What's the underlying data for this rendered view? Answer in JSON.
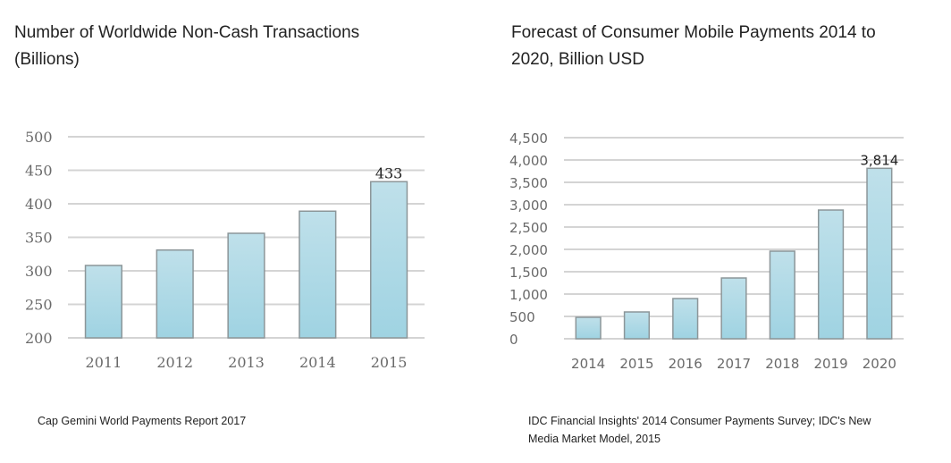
{
  "chart_data": [
    {
      "type": "bar",
      "title": "Number of Worldwide Non-Cash Transactions (Billions)",
      "title_lines": [
        "Number of Worldwide Non-Cash Transactions",
        "(Billions)"
      ],
      "xlabel": "",
      "ylabel": "",
      "categories": [
        "2011",
        "2012",
        "2013",
        "2014",
        "2015"
      ],
      "values": [
        308,
        331,
        356,
        389,
        433
      ],
      "data_labels": [
        {
          "category": "2015",
          "text": "433"
        }
      ],
      "ylim": [
        200,
        500
      ],
      "yticks": [
        200,
        250,
        300,
        350,
        400,
        450,
        500
      ],
      "ytick_labels": [
        "200",
        "250",
        "300",
        "350",
        "400",
        "450",
        "500"
      ],
      "grid": true,
      "legend": "none",
      "source": "Cap Gemini World Payments Report 2017"
    },
    {
      "type": "bar",
      "title": "Forecast of Consumer Mobile Payments 2014 to 2020, Billion USD",
      "title_lines": [
        "Forecast of Consumer Mobile Payments 2014 to",
        "2020, Billion USD"
      ],
      "xlabel": "",
      "ylabel": "",
      "categories": [
        "2014",
        "2015",
        "2016",
        "2017",
        "2018",
        "2019",
        "2020"
      ],
      "values": [
        480,
        600,
        900,
        1360,
        1960,
        2880,
        3814
      ],
      "data_labels": [
        {
          "category": "2020",
          "text": "3,814"
        }
      ],
      "ylim": [
        0,
        4500
      ],
      "yticks": [
        0,
        500,
        1000,
        1500,
        2000,
        2500,
        3000,
        3500,
        4000,
        4500
      ],
      "ytick_labels": [
        "0",
        "500",
        "1,000",
        "1,500",
        "2,000",
        "2,500",
        "3,000",
        "3,500",
        "4,000",
        "4,500"
      ],
      "grid": true,
      "legend": "none",
      "source_lines": [
        "IDC Financial Insights' 2014 Consumer Payments Survey; IDC's New",
        "Media Market Model, 2015"
      ]
    }
  ],
  "colors": {
    "bar_top": "#bfe0ea",
    "bar_bottom": "#9fd3e2",
    "bar_stroke": "#8c9699",
    "grid": "#d4d4d4"
  }
}
